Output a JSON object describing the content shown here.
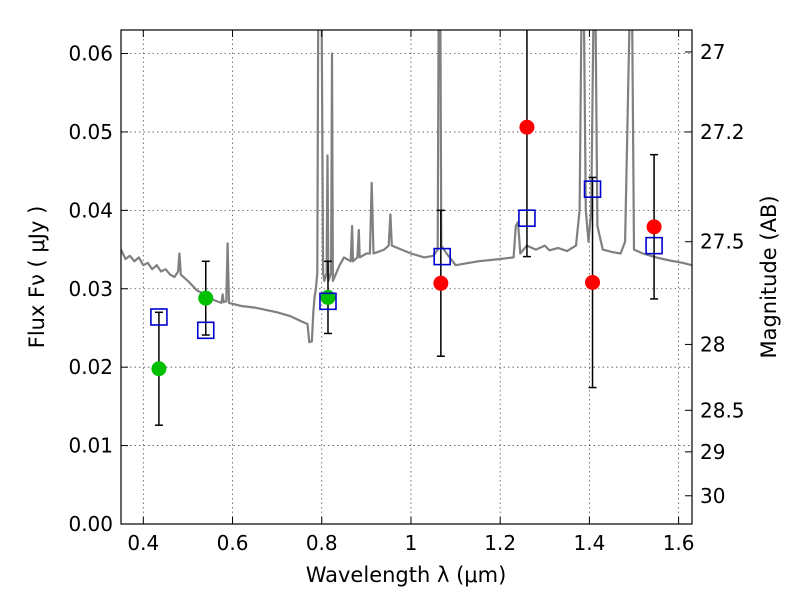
{
  "chart_data": {
    "type": "scatter",
    "xlabel": "Wavelength  λ (μm)",
    "ylabel": "Flux  Fν  ( μJy )",
    "ylabel_right": "Magnitude (AB)",
    "xlim": [
      0.35,
      1.63
    ],
    "ylim": [
      0.0,
      0.063
    ],
    "grid": true,
    "x_ticks": [
      0.4,
      0.6,
      0.8,
      1.0,
      1.2,
      1.4,
      1.6
    ],
    "x_tick_labels": [
      "0.4",
      "0.6",
      "0.8",
      "1",
      "1.2",
      "1.4",
      "1.6"
    ],
    "y_ticks": [
      0.0,
      0.01,
      0.02,
      0.03,
      0.04,
      0.05,
      0.06
    ],
    "y_tick_labels": [
      "0.00",
      "0.01",
      "0.02",
      "0.03",
      "0.04",
      "0.05",
      "0.06"
    ],
    "right_ticks": [
      {
        "flux": 0.0602,
        "label": "27"
      },
      {
        "flux": 0.05,
        "label": "27.2"
      },
      {
        "flux": 0.036,
        "label": "27.5"
      },
      {
        "flux": 0.0229,
        "label": "28"
      },
      {
        "flux": 0.0145,
        "label": "28.5"
      },
      {
        "flux": 0.0092,
        "label": "29"
      },
      {
        "flux": 0.0036,
        "label": "30"
      }
    ],
    "colors": {
      "spectrum": "#808080",
      "green": "#00c000",
      "red": "#ff0000",
      "model": "#0000cc",
      "errorbar": "#000000",
      "grid": "#555555"
    },
    "series": [
      {
        "marker": "green-circle",
        "points": [
          {
            "x": 0.435,
            "y": 0.0198,
            "err": 0.0072
          },
          {
            "x": 0.54,
            "y": 0.0288,
            "err": 0.0047
          },
          {
            "x": 0.814,
            "y": 0.0289,
            "err": 0.0046
          }
        ]
      },
      {
        "marker": "red-circle",
        "points": [
          {
            "x": 1.067,
            "y": 0.0307,
            "err": 0.0093
          },
          {
            "x": 1.26,
            "y": 0.0506,
            "err": 0.0165
          },
          {
            "x": 1.407,
            "y": 0.0308,
            "err": 0.0134
          },
          {
            "x": 1.545,
            "y": 0.0379,
            "err": 0.0092
          }
        ]
      },
      {
        "marker": "blue-open-square",
        "points": [
          {
            "x": 0.435,
            "y": 0.0264
          },
          {
            "x": 0.54,
            "y": 0.0247
          },
          {
            "x": 0.814,
            "y": 0.0284
          },
          {
            "x": 1.07,
            "y": 0.0341
          },
          {
            "x": 1.26,
            "y": 0.039
          },
          {
            "x": 1.407,
            "y": 0.0427
          },
          {
            "x": 1.545,
            "y": 0.0355
          }
        ]
      }
    ],
    "spectrum": {
      "points": [
        [
          0.35,
          0.035
        ],
        [
          0.36,
          0.0338
        ],
        [
          0.37,
          0.0342
        ],
        [
          0.38,
          0.0335
        ],
        [
          0.39,
          0.034
        ],
        [
          0.4,
          0.033
        ],
        [
          0.41,
          0.0333
        ],
        [
          0.42,
          0.0325
        ],
        [
          0.43,
          0.033
        ],
        [
          0.44,
          0.0322
        ],
        [
          0.45,
          0.0325
        ],
        [
          0.46,
          0.0318
        ],
        [
          0.47,
          0.0315
        ],
        [
          0.478,
          0.0322
        ],
        [
          0.481,
          0.0345
        ],
        [
          0.484,
          0.0318
        ],
        [
          0.5,
          0.031
        ],
        [
          0.52,
          0.0298
        ],
        [
          0.54,
          0.0292
        ],
        [
          0.56,
          0.0285
        ],
        [
          0.575,
          0.0282
        ],
        [
          0.578,
          0.0293
        ],
        [
          0.58,
          0.0283
        ],
        [
          0.586,
          0.0284
        ],
        [
          0.589,
          0.0358
        ],
        [
          0.592,
          0.0282
        ],
        [
          0.62,
          0.0278
        ],
        [
          0.65,
          0.0276
        ],
        [
          0.7,
          0.027
        ],
        [
          0.73,
          0.0265
        ],
        [
          0.76,
          0.0257
        ],
        [
          0.768,
          0.0255
        ],
        [
          0.772,
          0.0232
        ],
        [
          0.778,
          0.0233
        ],
        [
          0.781,
          0.027
        ],
        [
          0.784,
          0.029
        ],
        [
          0.787,
          0.03
        ],
        [
          0.79,
          0.032
        ],
        [
          0.792,
          0.064
        ],
        [
          0.8,
          0.064
        ],
        [
          0.803,
          0.032
        ],
        [
          0.806,
          0.031
        ],
        [
          0.811,
          0.032
        ],
        [
          0.813,
          0.047
        ],
        [
          0.815,
          0.031
        ],
        [
          0.821,
          0.032
        ],
        [
          0.823,
          0.06
        ],
        [
          0.825,
          0.031
        ],
        [
          0.84,
          0.033
        ],
        [
          0.85,
          0.034
        ],
        [
          0.865,
          0.0335
        ],
        [
          0.868,
          0.038
        ],
        [
          0.87,
          0.0335
        ],
        [
          0.88,
          0.034
        ],
        [
          0.883,
          0.0375
        ],
        [
          0.885,
          0.034
        ],
        [
          0.9,
          0.0345
        ],
        [
          0.908,
          0.0345
        ],
        [
          0.912,
          0.0435
        ],
        [
          0.916,
          0.0345
        ],
        [
          0.94,
          0.035
        ],
        [
          0.95,
          0.0355
        ],
        [
          0.954,
          0.0395
        ],
        [
          0.957,
          0.0355
        ],
        [
          1.0,
          0.0345
        ],
        [
          1.03,
          0.034
        ],
        [
          1.05,
          0.0342
        ],
        [
          1.06,
          0.035
        ],
        [
          1.062,
          0.064
        ],
        [
          1.066,
          0.064
        ],
        [
          1.068,
          0.0355
        ],
        [
          1.08,
          0.0345
        ],
        [
          1.1,
          0.033
        ],
        [
          1.15,
          0.0335
        ],
        [
          1.2,
          0.0338
        ],
        [
          1.23,
          0.034
        ],
        [
          1.235,
          0.038
        ],
        [
          1.24,
          0.0385
        ],
        [
          1.245,
          0.0345
        ],
        [
          1.26,
          0.0355
        ],
        [
          1.28,
          0.035
        ],
        [
          1.3,
          0.0355
        ],
        [
          1.31,
          0.0349
        ],
        [
          1.33,
          0.0352
        ],
        [
          1.35,
          0.0348
        ],
        [
          1.37,
          0.0355
        ],
        [
          1.378,
          0.04
        ],
        [
          1.382,
          0.064
        ],
        [
          1.388,
          0.064
        ],
        [
          1.392,
          0.04
        ],
        [
          1.398,
          0.036
        ],
        [
          1.404,
          0.04
        ],
        [
          1.409,
          0.064
        ],
        [
          1.414,
          0.064
        ],
        [
          1.418,
          0.038
        ],
        [
          1.43,
          0.035
        ],
        [
          1.45,
          0.0347
        ],
        [
          1.47,
          0.0345
        ],
        [
          1.48,
          0.036
        ],
        [
          1.49,
          0.064
        ],
        [
          1.496,
          0.064
        ],
        [
          1.5,
          0.035
        ],
        [
          1.52,
          0.0345
        ],
        [
          1.55,
          0.034
        ],
        [
          1.58,
          0.0336
        ],
        [
          1.61,
          0.0333
        ],
        [
          1.63,
          0.033
        ]
      ]
    }
  }
}
